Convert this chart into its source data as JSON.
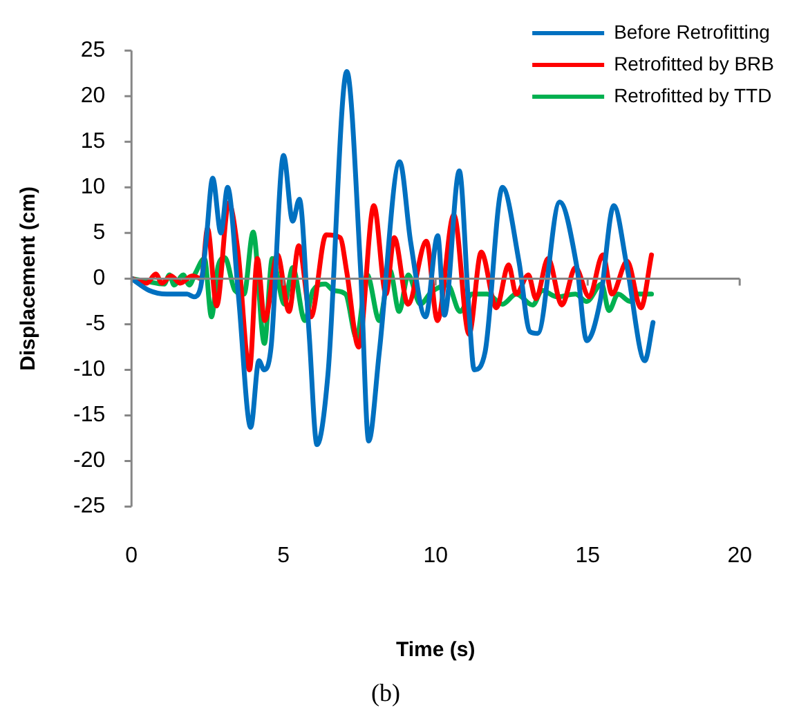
{
  "chart_data": {
    "type": "line",
    "xlabel": "Time (s)",
    "ylabel": "Displacement (cm)",
    "annotations": [
      "(b)"
    ],
    "xlim": [
      0,
      20
    ],
    "xticks": [
      0,
      5,
      10,
      15,
      20
    ],
    "ylim": [
      -25,
      25
    ],
    "yticks": [
      -25,
      -20,
      -15,
      -10,
      -5,
      0,
      5,
      10,
      15,
      20,
      25
    ],
    "grid": false,
    "ref_lines": [
      {
        "axis": "y",
        "value": 0,
        "color": "#868686",
        "line_style": "solid"
      }
    ],
    "legend": "top right",
    "marker": "none",
    "line_style": "solid",
    "series": [
      {
        "name": "Before Retrofitting",
        "color": "#0070c0",
        "x": [
          0,
          0.58,
          1.16,
          1.83,
          2.05,
          2.27,
          2.45,
          2.67,
          2.94,
          3.16,
          3.52,
          3.92,
          4.19,
          4.36,
          4.59,
          5.0,
          5.3,
          5.52,
          5.84,
          6.1,
          6.46,
          7.08,
          7.53,
          7.8,
          8.15,
          8.82,
          9.18,
          9.67,
          10.07,
          10.29,
          10.78,
          11.09,
          11.27,
          11.63,
          12.2,
          12.74,
          13.1,
          13.36,
          14.08,
          14.65,
          14.97,
          15.41,
          15.86,
          16.3,
          16.88,
          17.15
        ],
        "values": [
          0,
          -1.3,
          -1.7,
          -1.7,
          -2,
          -1,
          4,
          11,
          5,
          10,
          -2,
          -16.3,
          -9,
          -10,
          -7.5,
          13.5,
          6.3,
          8.7,
          -6,
          -18.2,
          -10.5,
          22.7,
          1.2,
          -17.8,
          -8,
          12.8,
          4,
          -4.2,
          4.7,
          -4,
          11.8,
          -3.2,
          -10,
          -8,
          10,
          1.9,
          -5.8,
          -6,
          8.4,
          1.2,
          -6.8,
          -2.5,
          8,
          1.2,
          -9,
          -4.8
        ]
      },
      {
        "name": "Retrofitted by BRB",
        "color": "#ff0000",
        "x": [
          0,
          0.5,
          0.8,
          1.0,
          1.3,
          1.6,
          2.0,
          2.3,
          2.5,
          2.8,
          3.2,
          3.5,
          3.88,
          4.14,
          4.38,
          4.8,
          5.18,
          5.5,
          5.9,
          6.4,
          6.86,
          7.08,
          7.47,
          7.97,
          8.37,
          8.64,
          9.09,
          9.7,
          10.06,
          10.6,
          11.1,
          11.5,
          12.0,
          12.4,
          12.65,
          13.05,
          13.3,
          13.7,
          14.15,
          14.6,
          15.05,
          15.5,
          15.8,
          16.3,
          16.75,
          17.1
        ],
        "values": [
          0,
          -0.5,
          0.5,
          -0.5,
          0.3,
          -0.5,
          0.3,
          0,
          5.5,
          -3,
          8.3,
          3,
          -10,
          2.2,
          -4.6,
          2.6,
          -3.6,
          3.6,
          -4.2,
          4.8,
          4.5,
          0.7,
          -7.5,
          8,
          -1.7,
          4.5,
          -2.8,
          4.1,
          -4.6,
          7,
          -6.1,
          2.9,
          -3.2,
          1.5,
          -1.7,
          0.4,
          -2.2,
          2.2,
          -2.9,
          1.2,
          -2,
          2.6,
          -1.7,
          1.9,
          -3.2,
          2.6
        ]
      },
      {
        "name": "Retrofitted by TTD",
        "color": "#00b050",
        "x": [
          0,
          0.5,
          1.07,
          1.25,
          1.4,
          1.7,
          1.9,
          2.1,
          2.4,
          2.63,
          2.85,
          3.07,
          3.4,
          3.7,
          4.0,
          4.37,
          4.63,
          5.03,
          5.3,
          5.7,
          5.97,
          6.37,
          6.64,
          7.04,
          7.4,
          7.75,
          8.15,
          8.5,
          8.8,
          9.1,
          9.5,
          9.85,
          10.4,
          10.8,
          11.2,
          11.7,
          12.2,
          12.65,
          13.2,
          13.5,
          14.0,
          14.6,
          14.97,
          15.46,
          15.7,
          16.0,
          16.4,
          16.67,
          17.1
        ],
        "values": [
          0,
          -0.3,
          -0.6,
          0.4,
          -0.7,
          0.4,
          -0.7,
          0.6,
          2.2,
          -4.2,
          1.4,
          2.3,
          -1.3,
          -1.7,
          5.1,
          -7.1,
          2.2,
          -2.8,
          1.2,
          -4.6,
          -1.3,
          -0.6,
          -1.3,
          -1.7,
          -6.5,
          0.4,
          -4.6,
          0.9,
          -3.6,
          0.4,
          -2.8,
          -1.5,
          -0.7,
          -3.6,
          -1.7,
          -1.7,
          -2.8,
          -1.7,
          -2.9,
          -1.3,
          -2,
          -1.7,
          -2.5,
          -0.6,
          -3.5,
          -1.7,
          -2.5,
          -1.7,
          -1.7
        ]
      }
    ]
  }
}
